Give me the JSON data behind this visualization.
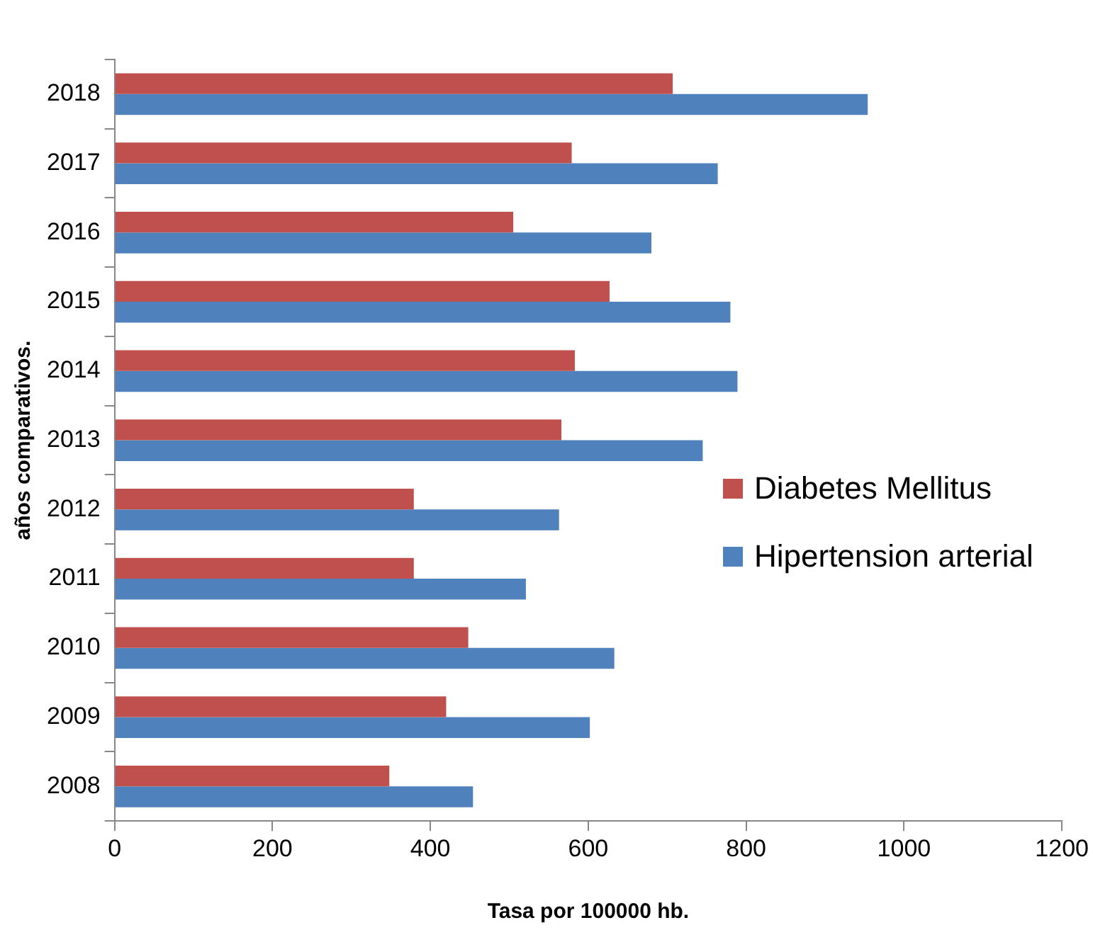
{
  "chart_data": {
    "type": "bar",
    "orientation": "horizontal",
    "xlabel": "Tasa por 100000 hb.",
    "ylabel": "años comparativos.",
    "categories": [
      "2018",
      "2017",
      "2016",
      "2015",
      "2014",
      "2013",
      "2012",
      "2011",
      "2010",
      "2009",
      "2008"
    ],
    "series": [
      {
        "name": "Diabetes Mellitus",
        "color": "#c0504d",
        "values": [
          707,
          579,
          505,
          627,
          583,
          566,
          379,
          379,
          448,
          420,
          348
        ]
      },
      {
        "name": "Hipertension arterial",
        "color": "#4f81bd",
        "values": [
          954,
          764,
          680,
          780,
          789,
          745,
          563,
          521,
          633,
          602,
          454
        ]
      }
    ],
    "xlim": [
      0,
      1200
    ],
    "xticks": [
      0,
      200,
      400,
      600,
      800,
      1000,
      1200
    ],
    "grid": false,
    "legend": "right"
  }
}
